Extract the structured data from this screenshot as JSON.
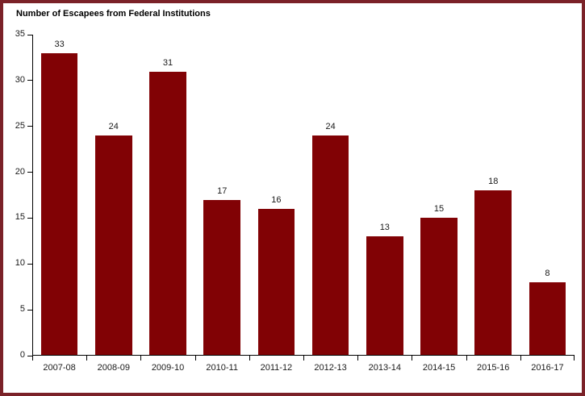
{
  "chart_data": {
    "type": "bar",
    "title": "Number of Escapees from Federal Institutions",
    "categories": [
      "2007-08",
      "2008-09",
      "2009-10",
      "2010-11",
      "2011-12",
      "2012-13",
      "2013-14",
      "2014-15",
      "2015-16",
      "2016-17"
    ],
    "values": [
      33,
      24,
      31,
      17,
      16,
      24,
      13,
      15,
      18,
      8
    ],
    "xlabel": "",
    "ylabel": "",
    "ylim": [
      0,
      35
    ],
    "yticks": [
      0,
      5,
      10,
      15,
      20,
      25,
      30,
      35
    ],
    "grid": false,
    "legend": "none",
    "data_labels": true,
    "bar_color": "#810205",
    "frame_border_color": "#7B2228",
    "axis_color": "#000000",
    "text_color": "#1a1a1a"
  }
}
